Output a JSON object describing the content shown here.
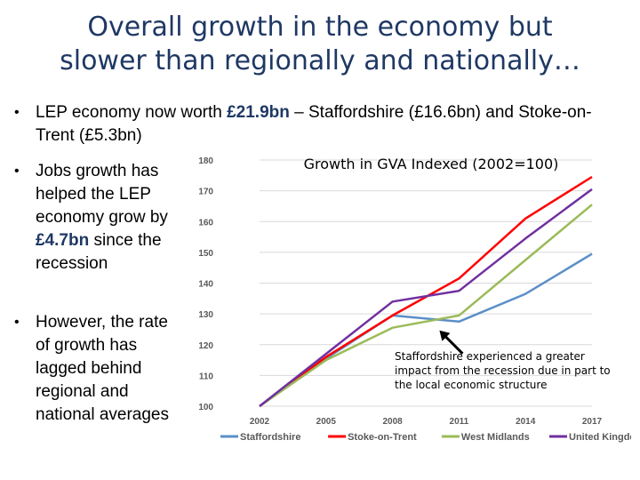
{
  "slide": {
    "title_line1": "Overall growth in the economy but",
    "title_line2": "slower than regionally and nationally…",
    "bullet_marker": "•",
    "bullet1": {
      "pre": "LEP economy now worth ",
      "hl": "£21.9bn",
      "post": " – Staffordshire (£16.6bn) and Stoke-on-Trent (£5.3bn)"
    },
    "bullet2": {
      "pre": "Jobs growth has helped the LEP economy grow by ",
      "hl": "£4.7bn",
      "post": " since the recession"
    },
    "bullet3": {
      "text": "However, the rate of growth has lagged behind regional and national averages"
    },
    "annotation": "Staffordshire experienced a greater impact from the recession due in part to the local economic structure"
  },
  "colors": {
    "title": "#1f3864",
    "axis_text": "#595959",
    "gridline": "#d9d9d9"
  },
  "chart_data": {
    "type": "line",
    "title": "Growth in GVA Indexed (2002=100)",
    "x": [
      "2002",
      "2005",
      "2008",
      "2011",
      "2014",
      "2017"
    ],
    "ylim": [
      100,
      180
    ],
    "yticks": [
      100,
      110,
      120,
      130,
      140,
      150,
      160,
      170,
      180
    ],
    "grid": true,
    "legend": "bottom",
    "series": [
      {
        "name": "Staffordshire",
        "color": "#5b8fc7",
        "values": [
          100,
          115.5,
          129.5,
          127.5,
          136.5,
          149.5
        ]
      },
      {
        "name": "Stoke-on-Trent",
        "color": "#ff0000",
        "values": [
          100,
          116,
          129.5,
          141.5,
          161,
          174.5
        ]
      },
      {
        "name": "West Midlands",
        "color": "#9bbb59",
        "values": [
          100,
          115,
          125.5,
          129.5,
          147.5,
          165.5
        ]
      },
      {
        "name": "United Kingdom",
        "color": "#7030a0",
        "values": [
          100,
          117,
          134,
          137.5,
          154.5,
          170.5
        ]
      }
    ]
  }
}
